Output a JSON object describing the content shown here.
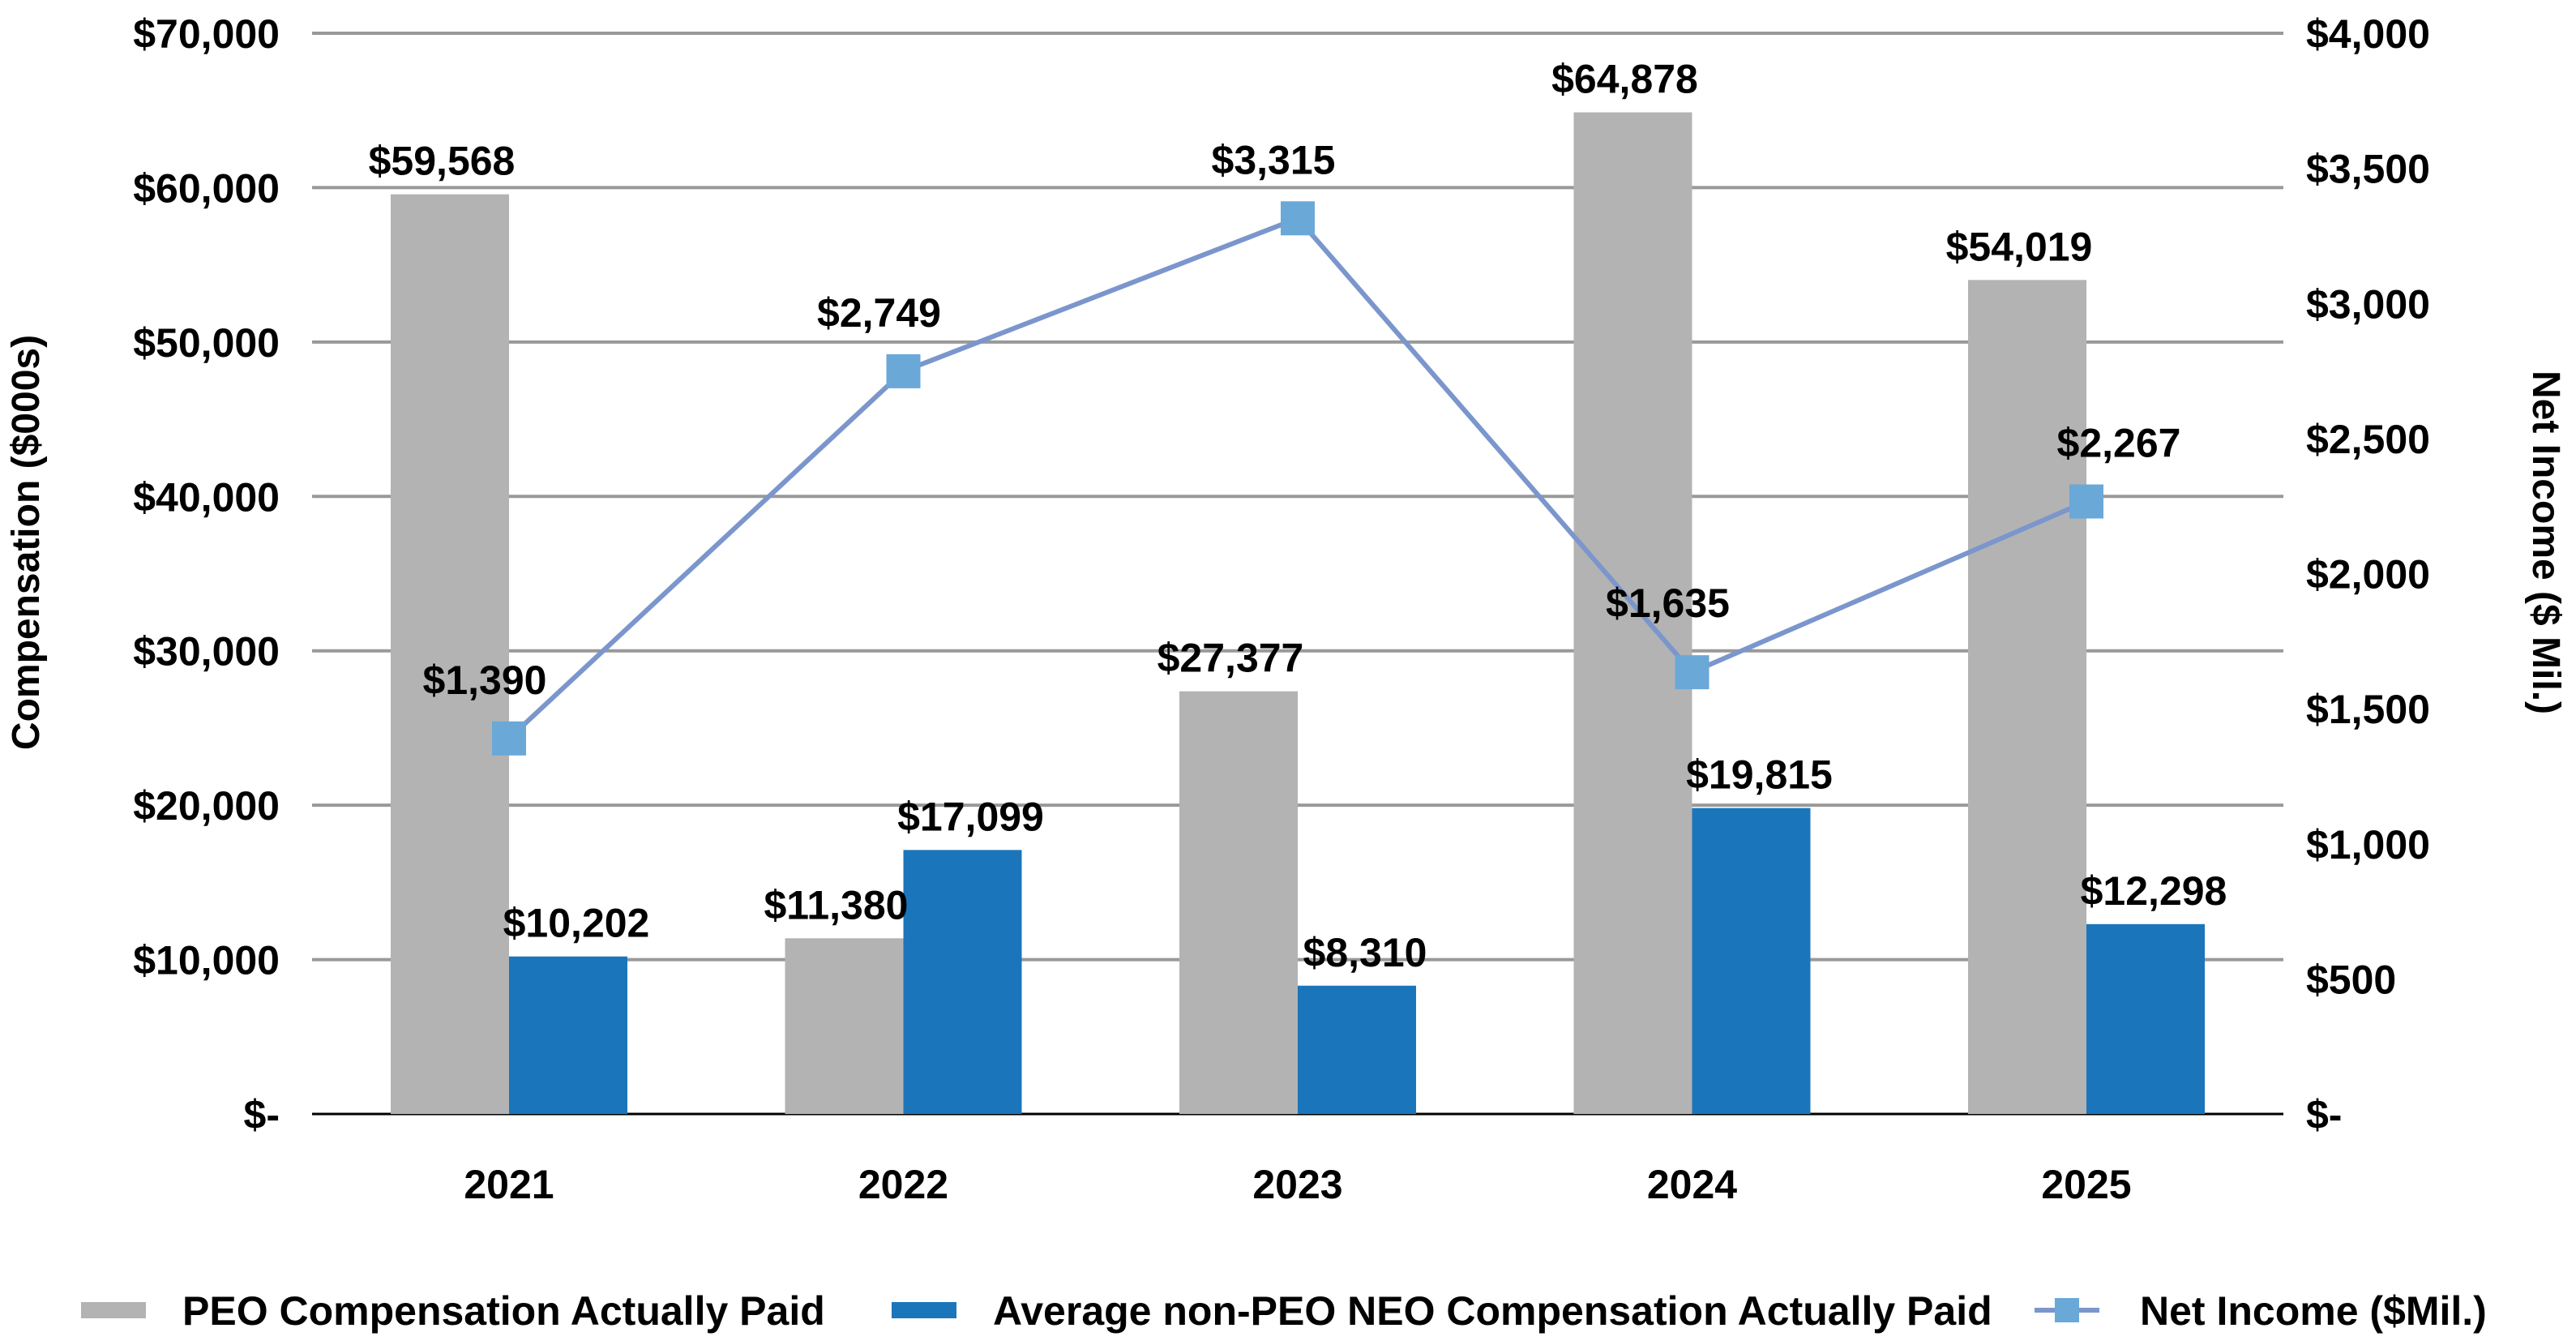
{
  "chart_data": {
    "type": "bar+line",
    "categories": [
      "2021",
      "2022",
      "2023",
      "2024",
      "2025"
    ],
    "series": [
      {
        "name": "PEO Compensation Actually Paid",
        "type": "bar",
        "axis": "left",
        "color": "#b3b3b3",
        "values": [
          59568,
          11380,
          27377,
          64878,
          54019
        ],
        "labels": [
          "$59,568",
          "$11,380",
          "$27,377",
          "$64,878",
          "$54,019"
        ]
      },
      {
        "name": "Average non-PEO NEO Compensation Actually Paid",
        "type": "bar",
        "axis": "left",
        "color": "#1b75bb",
        "values": [
          10202,
          17099,
          8310,
          19815,
          12298
        ],
        "labels": [
          "$10,202",
          "$17,099",
          "$8,310",
          "$19,815",
          "$12,298"
        ]
      },
      {
        "name": "Net Income ($Mil.)",
        "type": "line",
        "axis": "right",
        "color": "#7b96cc",
        "marker_color": "#6aa8d8",
        "values": [
          1390,
          2749,
          3315,
          1635,
          2267
        ],
        "labels": [
          "$1,390",
          "$2,749",
          "$3,315",
          "$1,635",
          "$2,267"
        ]
      }
    ],
    "ylabel": "Compensation ($000s)",
    "y2label": "Net Income ($ Mil.)",
    "ylim": [
      0,
      70000
    ],
    "y2lim": [
      0,
      4000
    ],
    "yticks": [
      "$-",
      "$10,000",
      "$20,000",
      "$30,000",
      "$40,000",
      "$50,000",
      "$60,000",
      "$70,000"
    ],
    "y2ticks": [
      "$-",
      "$500",
      "$1,000",
      "$1,500",
      "$2,000",
      "$2,500",
      "$3,000",
      "$3,500",
      "$4,000"
    ],
    "grid": true,
    "legend": "bottom"
  }
}
